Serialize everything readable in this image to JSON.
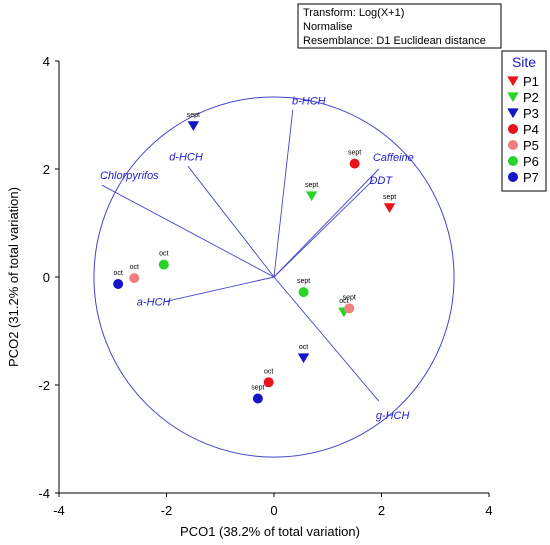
{
  "chart_data": {
    "type": "scatter",
    "xlabel": "PCO1 (38.2% of total variation)",
    "ylabel": "PCO2 (31.2% of total variation)",
    "xlim": [
      -4,
      4
    ],
    "ylim": [
      -4,
      4
    ],
    "xticks": [
      -4,
      -2,
      0,
      2,
      4
    ],
    "yticks": [
      -4,
      -2,
      0,
      2,
      4
    ],
    "info_box": [
      "Transform: Log(X+1)",
      "Normalise",
      "Resemblance: D1 Euclidean distance"
    ],
    "legend": {
      "title": "Site",
      "placement": "right",
      "entries": [
        {
          "name": "P1",
          "marker": "triangle-down",
          "color": "#e8141c"
        },
        {
          "name": "P2",
          "marker": "triangle-down",
          "color": "#2ad42a"
        },
        {
          "name": "P3",
          "marker": "triangle-down",
          "color": "#1414c8"
        },
        {
          "name": "P4",
          "marker": "circle",
          "color": "#e8141c"
        },
        {
          "name": "P5",
          "marker": "circle",
          "color": "#f08080"
        },
        {
          "name": "P6",
          "marker": "circle",
          "color": "#2ad42a"
        },
        {
          "name": "P7",
          "marker": "circle",
          "color": "#1414c8"
        }
      ]
    },
    "circle": {
      "cx": 0,
      "cy": 0,
      "r": 3.35,
      "color": "#4444cc"
    },
    "vectors": [
      {
        "name": "b-HCH",
        "x": 0.35,
        "y": 3.1
      },
      {
        "name": "d-HCH",
        "x": -1.6,
        "y": 2.05
      },
      {
        "name": "Chlorpyrifos",
        "x": -3.2,
        "y": 1.7
      },
      {
        "name": "Caffeine",
        "x": 1.95,
        "y": 2.0
      },
      {
        "name": "DDT",
        "x": 1.85,
        "y": 1.8
      },
      {
        "name": "a-HCH",
        "x": -2.0,
        "y": -0.45
      },
      {
        "name": "g-HCH",
        "x": 1.95,
        "y": -2.3
      }
    ],
    "points": [
      {
        "site": "P3",
        "label": "sept",
        "x": -1.5,
        "y": 2.8
      },
      {
        "site": "P4",
        "label": "sept",
        "x": 1.5,
        "y": 2.1
      },
      {
        "site": "P2",
        "label": "sept",
        "x": 0.7,
        "y": 1.5
      },
      {
        "site": "P1",
        "label": "sept",
        "x": 2.15,
        "y": 1.28
      },
      {
        "site": "P6",
        "label": "oct",
        "x": -2.05,
        "y": 0.23
      },
      {
        "site": "P5",
        "label": "oct",
        "x": -2.6,
        "y": -0.02
      },
      {
        "site": "P7",
        "label": "oct",
        "x": -2.9,
        "y": -0.13
      },
      {
        "site": "P6",
        "label": "sept",
        "x": 0.55,
        "y": -0.28
      },
      {
        "site": "P2",
        "label": "oct",
        "x": 1.3,
        "y": -0.65
      },
      {
        "site": "P5",
        "label": "sept",
        "x": 1.4,
        "y": -0.58
      },
      {
        "site": "P3",
        "label": "oct",
        "x": 0.55,
        "y": -1.5
      },
      {
        "site": "P4",
        "label": "oct",
        "x": -0.1,
        "y": -1.95
      },
      {
        "site": "P7",
        "label": "sept",
        "x": -0.3,
        "y": -2.25
      }
    ]
  }
}
